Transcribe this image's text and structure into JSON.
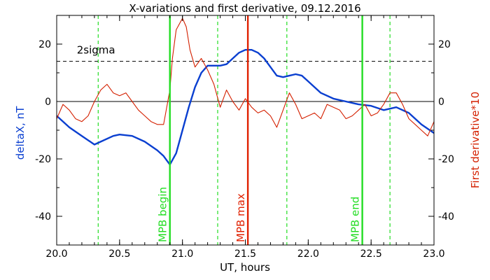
{
  "chart_data": {
    "type": "line",
    "title": "X-variations and first derivative, 09.12.2016",
    "xlabel": "UT, hours",
    "ylabel": "deltaX, nT",
    "ylabel_right": "First derivative*10",
    "xlim": [
      20.0,
      23.0
    ],
    "ylim": [
      -50,
      30
    ],
    "xticks": [
      20.0,
      20.5,
      21.0,
      21.5,
      22.0,
      22.5,
      23.0
    ],
    "xtick_labels": [
      "20.0",
      "20.5",
      "21.0",
      "21.5",
      "22.0",
      "22.5",
      "23.0"
    ],
    "yticks": [
      -40,
      -20,
      0,
      20
    ],
    "ytick_labels": [
      "-40",
      "-20",
      "0",
      "20"
    ],
    "ytick_labels_right": [
      "-40",
      "-20",
      "0",
      "20"
    ],
    "colors": {
      "deltaX": "#0a3fd0",
      "derivative": "#d42000",
      "mpb_green": "#22dd22",
      "mpb_red": "#e02000"
    },
    "threshold": {
      "value": 14,
      "label": "2sigma"
    },
    "zero_line": 0,
    "vertical_markers": [
      {
        "x": 20.9,
        "label": "MPB begin",
        "color": "#22dd22",
        "style": "solid"
      },
      {
        "x": 21.52,
        "label": "MPB max",
        "color": "#e02000",
        "style": "solid"
      },
      {
        "x": 22.43,
        "label": "MPB end",
        "color": "#22dd22",
        "style": "solid"
      }
    ],
    "dashed_markers": [
      20.33,
      21.28,
      21.83,
      22.65
    ],
    "series": [
      {
        "key": "deltaX",
        "color": "#0a3fd0",
        "x": [
          20.0,
          20.1,
          20.2,
          20.3,
          20.35,
          20.45,
          20.5,
          20.6,
          20.7,
          20.8,
          20.85,
          20.9,
          20.95,
          21.0,
          21.05,
          21.1,
          21.15,
          21.2,
          21.25,
          21.3,
          21.35,
          21.4,
          21.45,
          21.5,
          21.55,
          21.6,
          21.65,
          21.7,
          21.75,
          21.8,
          21.85,
          21.9,
          21.95,
          22.0,
          22.1,
          22.2,
          22.3,
          22.4,
          22.5,
          22.6,
          22.7,
          22.8,
          22.9,
          23.0
        ],
        "y": [
          -5,
          -9,
          -12,
          -15,
          -14,
          -12,
          -11.5,
          -12,
          -14,
          -17,
          -19,
          -22,
          -18,
          -10,
          -2,
          5,
          10,
          12.5,
          12.5,
          12.5,
          13,
          15,
          17,
          18,
          18,
          17,
          15,
          12,
          9,
          8.5,
          9,
          9.5,
          9,
          7,
          3,
          1,
          0,
          -1,
          -1.5,
          -3,
          -2,
          -4,
          -8,
          -11
        ]
      },
      {
        "key": "derivative",
        "color": "#d42000",
        "x": [
          20.0,
          20.05,
          20.1,
          20.15,
          20.2,
          20.25,
          20.3,
          20.35,
          20.4,
          20.45,
          20.5,
          20.55,
          20.6,
          20.65,
          20.7,
          20.75,
          20.8,
          20.85,
          20.9,
          20.92,
          20.95,
          21.0,
          21.03,
          21.06,
          21.1,
          21.15,
          21.2,
          21.25,
          21.3,
          21.35,
          21.4,
          21.45,
          21.5,
          21.55,
          21.6,
          21.65,
          21.7,
          21.75,
          21.8,
          21.85,
          21.9,
          21.95,
          22.0,
          22.05,
          22.1,
          22.15,
          22.2,
          22.25,
          22.3,
          22.35,
          22.4,
          22.45,
          22.5,
          22.55,
          22.6,
          22.65,
          22.7,
          22.75,
          22.8,
          22.85,
          22.9,
          22.95,
          23.0
        ],
        "y": [
          -6,
          -1,
          -3,
          -6,
          -7,
          -5,
          0,
          4,
          6,
          3,
          2,
          3,
          0,
          -3,
          -5,
          -7,
          -8,
          -8,
          4,
          15,
          25,
          29,
          26,
          18,
          12,
          15,
          11,
          6,
          -2,
          4,
          0,
          -3,
          1,
          -2,
          -4,
          -3,
          -5,
          -9,
          -3,
          3,
          -1,
          -6,
          -5,
          -4,
          -6,
          -1,
          -2,
          -3,
          -6,
          -5,
          -3,
          -1,
          -5,
          -4,
          -1,
          3,
          3,
          -1,
          -6,
          -8,
          -10,
          -12,
          -7
        ]
      }
    ]
  }
}
